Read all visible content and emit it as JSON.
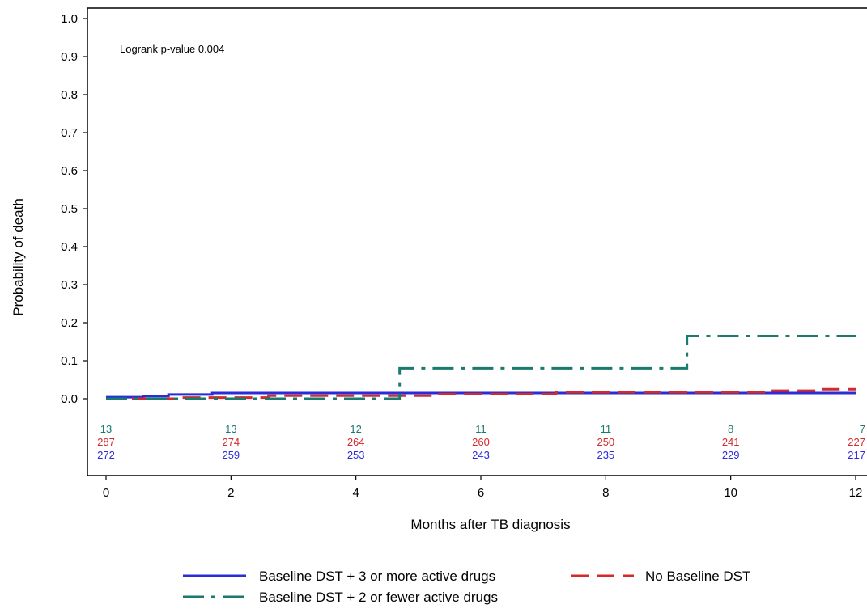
{
  "chart_data": {
    "type": "line",
    "title": "",
    "xlabel": "Months after TB diagnosis",
    "ylabel": "Probability of death",
    "xlim": [
      0,
      12
    ],
    "ylim": [
      0,
      1.0
    ],
    "x_ticks": [
      "0",
      "2",
      "4",
      "6",
      "8",
      "10",
      "12"
    ],
    "y_ticks": [
      "0.0",
      "0.1",
      "0.2",
      "0.3",
      "0.4",
      "0.5",
      "0.6",
      "0.7",
      "0.8",
      "0.9",
      "1.0"
    ],
    "grid": false,
    "legend_position": "bottom",
    "annotation": "Logrank p-value 0.004",
    "series": [
      {
        "name": "Baseline DST + 3 or more active drugs",
        "color": "#2b2bd8",
        "dash": "solid",
        "steps": [
          [
            0,
            0.004
          ],
          [
            0.6,
            0.007
          ],
          [
            1.0,
            0.011
          ],
          [
            1.7,
            0.015
          ],
          [
            12,
            0.015
          ]
        ],
        "at_risk": [
          "272",
          "259",
          "253",
          "243",
          "235",
          "229",
          "217"
        ]
      },
      {
        "name": "No Baseline DST",
        "color": "#d42a2a",
        "dash": "long-dash",
        "steps": [
          [
            0,
            0.0
          ],
          [
            1.2,
            0.003
          ],
          [
            2.6,
            0.008
          ],
          [
            5.3,
            0.012
          ],
          [
            7.2,
            0.017
          ],
          [
            10.6,
            0.021
          ],
          [
            11.4,
            0.025
          ],
          [
            12,
            0.025
          ]
        ],
        "at_risk": [
          "287",
          "274",
          "264",
          "260",
          "250",
          "241",
          "227"
        ]
      },
      {
        "name": "Baseline DST + 2 or fewer active drugs",
        "color": "#1a7a6e",
        "dash": "dash-dot",
        "steps": [
          [
            0,
            0.0
          ],
          [
            4.7,
            0.0
          ],
          [
            4.7,
            0.08
          ],
          [
            9.3,
            0.08
          ],
          [
            9.3,
            0.165
          ],
          [
            12,
            0.165
          ]
        ],
        "at_risk": [
          "13",
          "13",
          "12",
          "11",
          "11",
          "8",
          "7"
        ]
      }
    ],
    "risk_table_row_order": [
      2,
      1,
      0
    ],
    "legend_layout": [
      [
        0,
        1
      ],
      [
        2
      ]
    ]
  }
}
